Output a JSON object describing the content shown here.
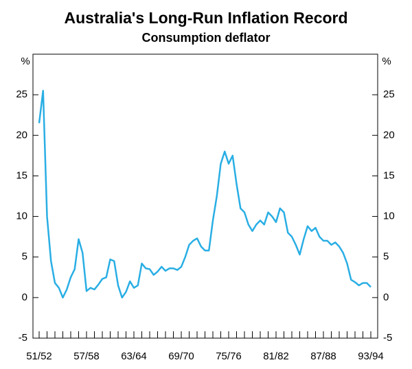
{
  "chart_data": {
    "type": "line",
    "title": "Australia's Long-Run Inflation Record",
    "subtitle": "Consumption deflator",
    "y_label": "%",
    "y2_label": "%",
    "categories": [
      "51/52",
      null,
      null,
      null,
      null,
      null,
      null,
      null,
      null,
      null,
      null,
      null,
      "57/58",
      null,
      null,
      null,
      null,
      null,
      null,
      null,
      null,
      null,
      null,
      null,
      "63/64",
      null,
      null,
      null,
      null,
      null,
      null,
      null,
      null,
      null,
      null,
      null,
      "69/70",
      null,
      null,
      null,
      null,
      null,
      null,
      null,
      null,
      null,
      null,
      null,
      "75/76",
      null,
      null,
      null,
      null,
      null,
      null,
      null,
      null,
      null,
      null,
      null,
      "81/82",
      null,
      null,
      null,
      null,
      null,
      null,
      null,
      null,
      null,
      null,
      null,
      "87/88",
      null,
      null,
      null,
      null,
      null,
      null,
      null,
      null,
      null,
      null,
      null,
      "93/94"
    ],
    "series": [
      {
        "name": "Consumption deflator",
        "color": "#29aee4",
        "values": [
          21.5,
          25.5,
          10,
          4.5,
          1.8,
          1.2,
          0,
          1,
          2.5,
          3.5,
          7.2,
          5.5,
          0.8,
          1.2,
          1,
          1.6,
          2.3,
          2.5,
          4.7,
          4.5,
          1.5,
          0,
          0.7,
          2.0,
          1.2,
          1.5,
          4.2,
          3.6,
          3.5,
          2.8,
          3.2,
          3.8,
          3.3,
          3.6,
          3.6,
          3.4,
          3.8,
          5,
          6.5,
          7,
          7.3,
          6.3,
          5.8,
          5.8,
          9.5,
          12.5,
          16.5,
          18,
          16.5,
          17.5,
          14,
          11,
          10.5,
          9,
          8.2,
          9,
          9.5,
          9,
          10.5,
          10,
          9.3,
          11,
          10.5,
          8,
          7.5,
          6.5,
          5.3,
          7.2,
          8.8,
          8.2,
          8.6,
          7.5,
          7,
          7,
          6.5,
          6.8,
          6.3,
          5.5,
          4.2,
          2.2,
          1.9,
          1.5,
          1.8,
          1.8,
          1.3
        ]
      }
    ],
    "ylim": [
      -5,
      30
    ],
    "yticks": [
      -5,
      0,
      5,
      10,
      15,
      20,
      25
    ],
    "grid": false
  }
}
